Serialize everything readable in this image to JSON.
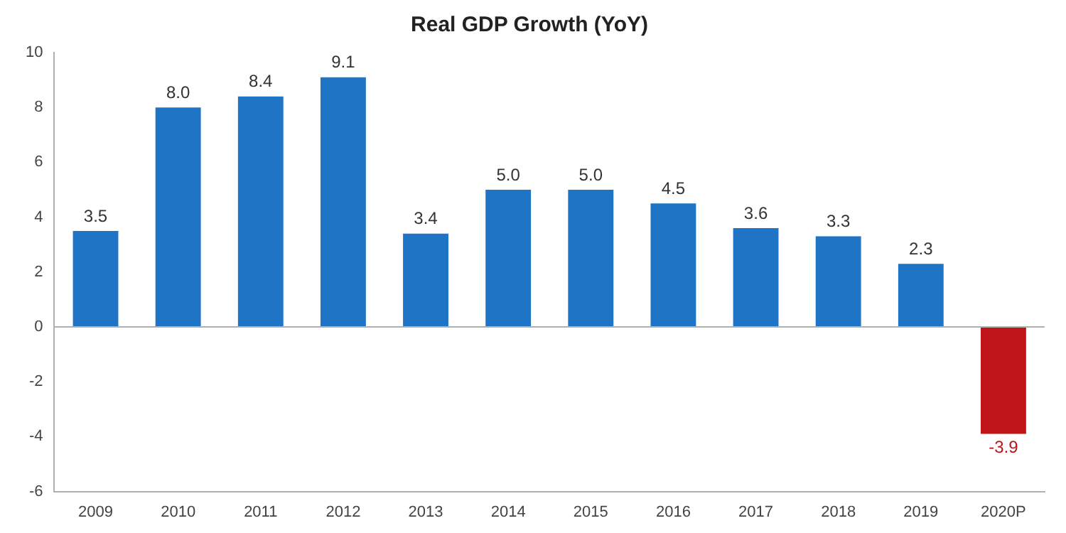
{
  "chart_data": {
    "type": "bar",
    "title": "Real GDP Growth (YoY)",
    "categories": [
      "2009",
      "2010",
      "2011",
      "2012",
      "2013",
      "2014",
      "2015",
      "2016",
      "2017",
      "2018",
      "2019",
      "2020P"
    ],
    "values": [
      3.5,
      8.0,
      8.4,
      9.1,
      3.4,
      5.0,
      5.0,
      4.5,
      3.6,
      3.3,
      2.3,
      -3.9
    ],
    "colors": [
      "#1f74c6",
      "#1f74c6",
      "#1f74c6",
      "#1f74c6",
      "#1f74c6",
      "#1f74c6",
      "#1f74c6",
      "#1f74c6",
      "#1f74c6",
      "#1f74c6",
      "#1f74c6",
      "#c0141b"
    ],
    "value_labels": [
      "3.5",
      "8.0",
      "8.4",
      "9.1",
      "3.4",
      "5.0",
      "5.0",
      "4.5",
      "3.6",
      "3.3",
      "2.3",
      "-3.9"
    ],
    "ylim": [
      -6,
      10
    ],
    "yticks": [
      -6,
      -4,
      -2,
      0,
      2,
      4,
      6,
      8,
      10
    ],
    "ref_lines": [
      {
        "axis": "y",
        "value": 0,
        "color": "#b0b0b0"
      }
    ],
    "grid": false,
    "legend": false
  }
}
